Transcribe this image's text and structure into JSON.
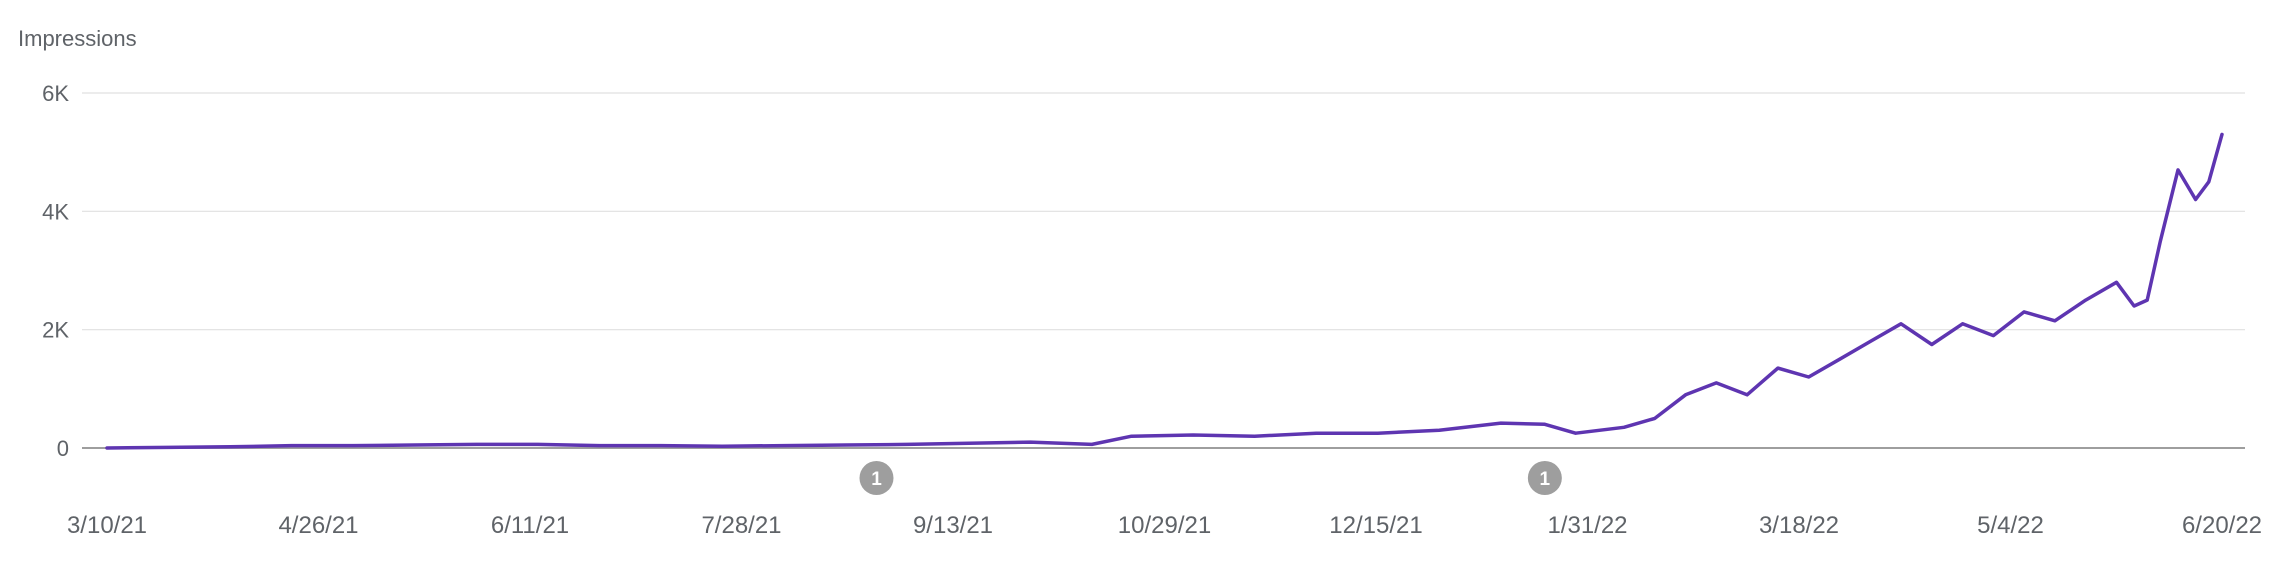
{
  "chart_data": {
    "type": "line",
    "ylabel": "Impressions",
    "ylim": [
      0,
      6000
    ],
    "y_ticks": [
      {
        "value": 6000,
        "label": "6K"
      },
      {
        "value": 4000,
        "label": "4K"
      },
      {
        "value": 2000,
        "label": "2K"
      },
      {
        "value": 0,
        "label": "0"
      }
    ],
    "x_tick_labels": [
      "3/10/21",
      "4/26/21",
      "6/11/21",
      "7/28/21",
      "9/13/21",
      "10/29/21",
      "12/15/21",
      "1/31/22",
      "3/18/22",
      "5/4/22",
      "6/20/22"
    ],
    "x_range": [
      "2021-03-10",
      "2022-07-04"
    ],
    "grid": true,
    "colors": {
      "line": "#5e35b1",
      "grid": "#e0e0e0",
      "baseline": "#9e9e9e",
      "marker": "#9e9e9e"
    },
    "annotations": [
      {
        "date": "2021-09-01",
        "label": "1"
      },
      {
        "date": "2022-01-31",
        "label": "1"
      }
    ],
    "series": [
      {
        "x": [
          "2021-03-10",
          "2021-03-24",
          "2021-04-07",
          "2021-04-21",
          "2021-05-05",
          "2021-05-19",
          "2021-06-02",
          "2021-06-16",
          "2021-06-30",
          "2021-07-14",
          "2021-07-28",
          "2021-08-11",
          "2021-08-25",
          "2021-09-08",
          "2021-09-22",
          "2021-10-06",
          "2021-10-20",
          "2021-10-29",
          "2021-11-12",
          "2021-11-26",
          "2021-12-10",
          "2021-12-24",
          "2022-01-07",
          "2022-01-21",
          "2022-01-31",
          "2022-02-07",
          "2022-02-18",
          "2022-02-25",
          "2022-03-04",
          "2022-03-11",
          "2022-03-18",
          "2022-03-25",
          "2022-04-01",
          "2022-04-08",
          "2022-04-15",
          "2022-04-22",
          "2022-04-29",
          "2022-05-06",
          "2022-05-13",
          "2022-05-20",
          "2022-05-27",
          "2022-06-03",
          "2022-06-10",
          "2022-06-14",
          "2022-06-17",
          "2022-06-20",
          "2022-06-24",
          "2022-06-28",
          "2022-07-01",
          "2022-07-04"
        ],
        "y": [
          0,
          10,
          20,
          40,
          40,
          50,
          60,
          60,
          40,
          40,
          30,
          40,
          50,
          60,
          80,
          100,
          60,
          200,
          220,
          200,
          250,
          250,
          300,
          420,
          400,
          250,
          350,
          500,
          900,
          1100,
          900,
          1350,
          1200,
          1500,
          1800,
          2100,
          1750,
          2100,
          1900,
          2300,
          2150,
          2500,
          2800,
          2400,
          2500,
          3500,
          4700,
          4200,
          4500,
          5300
        ]
      }
    ]
  }
}
